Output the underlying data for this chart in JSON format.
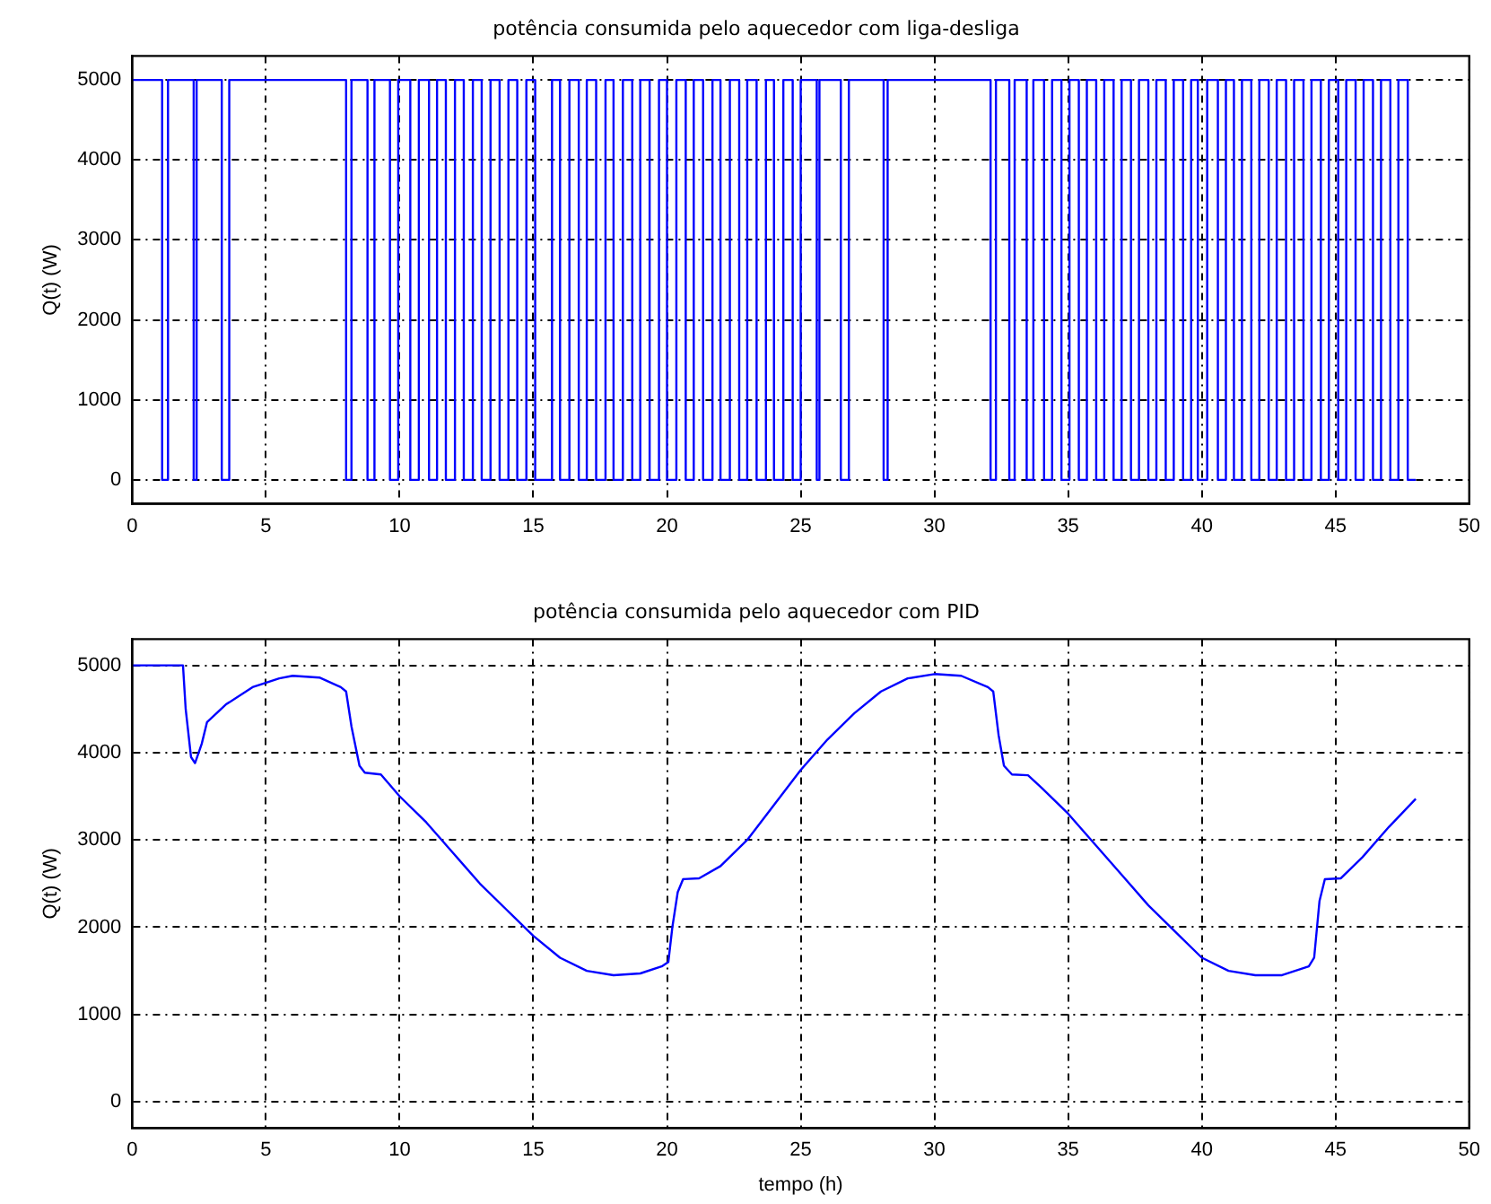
{
  "chart_data": [
    {
      "type": "line",
      "title": "potência consumida pelo aquecedor com liga-desliga",
      "ylabel": "Q(t) (W)",
      "xlim": [
        0,
        50
      ],
      "xticks": [
        0,
        5,
        10,
        15,
        20,
        25,
        30,
        35,
        40,
        45,
        50
      ],
      "ylim": [
        -300,
        5300
      ],
      "yticks": [
        0,
        1000,
        2000,
        3000,
        4000,
        5000
      ],
      "grid": true,
      "series": [
        {
          "color": "#0000ff",
          "x": [
            0,
            1.12,
            1.12,
            1.34,
            1.34,
            2.3,
            2.3,
            2.41,
            2.41,
            3.35,
            3.35,
            3.63,
            3.63,
            8.0,
            8.0,
            8.2,
            8.2,
            8.8,
            8.8,
            9.06,
            9.06,
            9.64,
            9.64,
            9.95,
            9.95,
            10.4,
            10.4,
            10.72,
            10.72,
            11.1,
            11.1,
            11.4,
            11.4,
            11.73,
            11.73,
            12.07,
            12.07,
            12.4,
            12.4,
            12.74,
            12.74,
            13.07,
            13.07,
            13.4,
            13.4,
            13.74,
            13.74,
            14.07,
            14.07,
            14.4,
            14.4,
            14.74,
            14.74,
            15.07,
            15.07,
            15.7,
            15.7,
            16.0,
            16.0,
            16.35,
            16.35,
            16.7,
            16.7,
            17.0,
            17.0,
            17.35,
            17.35,
            17.7,
            17.7,
            18.0,
            18.0,
            18.35,
            18.35,
            18.7,
            18.7,
            19.0,
            19.0,
            19.35,
            19.35,
            19.7,
            19.7,
            20.0,
            20.0,
            20.35,
            20.35,
            20.7,
            20.7,
            21.0,
            21.0,
            21.35,
            21.35,
            21.7,
            21.7,
            22.0,
            22.0,
            22.35,
            22.35,
            22.7,
            22.7,
            23.0,
            23.0,
            23.35,
            23.35,
            23.7,
            23.7,
            24.0,
            24.0,
            24.35,
            24.35,
            24.7,
            24.7,
            25.0,
            25.0,
            25.6,
            25.6,
            25.7,
            25.7,
            26.5,
            26.5,
            26.8,
            26.8,
            28.1,
            28.1,
            28.25,
            28.25,
            32.1,
            32.1,
            32.3,
            32.3,
            32.8,
            32.8,
            33.0,
            33.0,
            33.45,
            33.45,
            33.7,
            33.7,
            34.1,
            34.1,
            34.4,
            34.4,
            34.75,
            34.75,
            35.05,
            35.05,
            35.4,
            35.4,
            35.7,
            35.7,
            36.05,
            36.05,
            36.35,
            36.35,
            36.7,
            36.7,
            37.0,
            37.0,
            37.35,
            37.35,
            37.65,
            37.65,
            38.0,
            38.0,
            38.3,
            38.3,
            38.65,
            38.65,
            38.95,
            38.95,
            39.3,
            39.3,
            39.6,
            39.6,
            39.85,
            39.85,
            40.2,
            40.2,
            40.6,
            40.6,
            40.9,
            40.9,
            41.2,
            41.2,
            41.5,
            41.5,
            41.85,
            41.85,
            42.15,
            42.15,
            42.5,
            42.5,
            42.8,
            42.8,
            43.15,
            43.15,
            43.45,
            43.45,
            43.8,
            43.8,
            44.1,
            44.1,
            44.45,
            44.45,
            44.75,
            44.75,
            45.1,
            45.1,
            45.4,
            45.4,
            45.75,
            45.75,
            46.05,
            46.05,
            46.4,
            46.4,
            46.7,
            46.7,
            47.05,
            47.05,
            47.35,
            47.35,
            47.7,
            47.7,
            48.0
          ],
          "values": [
            5000,
            5000,
            0,
            0,
            5000,
            5000,
            0,
            0,
            5000,
            5000,
            0,
            0,
            5000,
            5000,
            0,
            0,
            5000,
            5000,
            0,
            0,
            5000,
            5000,
            0,
            0,
            5000,
            5000,
            0,
            0,
            5000,
            5000,
            0,
            0,
            5000,
            5000,
            0,
            0,
            5000,
            5000,
            0,
            0,
            5000,
            5000,
            0,
            0,
            5000,
            5000,
            0,
            0,
            5000,
            5000,
            0,
            0,
            5000,
            5000,
            0,
            0,
            5000,
            5000,
            0,
            0,
            5000,
            5000,
            0,
            0,
            5000,
            5000,
            0,
            0,
            5000,
            5000,
            0,
            0,
            5000,
            5000,
            0,
            0,
            5000,
            5000,
            0,
            0,
            5000,
            5000,
            0,
            0,
            5000,
            5000,
            0,
            0,
            5000,
            5000,
            0,
            0,
            5000,
            5000,
            0,
            0,
            5000,
            5000,
            0,
            0,
            5000,
            5000,
            0,
            0,
            5000,
            5000,
            0,
            0,
            5000,
            5000,
            0,
            0,
            5000,
            5000,
            0,
            0,
            5000,
            5000,
            0,
            0,
            5000,
            5000,
            0,
            0,
            5000,
            5000,
            0,
            0,
            5000,
            5000,
            0,
            0,
            5000,
            5000,
            0,
            0,
            5000,
            5000,
            0,
            0,
            5000,
            5000,
            0,
            0,
            5000,
            5000,
            0,
            0,
            5000,
            5000,
            0,
            0,
            5000,
            5000,
            0,
            0,
            5000,
            5000,
            0,
            0,
            5000,
            5000,
            0,
            0,
            5000,
            5000,
            0,
            0,
            5000,
            5000,
            0,
            0,
            5000,
            5000,
            0,
            0,
            5000,
            5000,
            0,
            0,
            5000,
            5000,
            0,
            0,
            5000,
            5000,
            0,
            0,
            5000,
            5000,
            0,
            0,
            5000,
            5000,
            0,
            0,
            5000,
            5000,
            0,
            0,
            5000,
            5000,
            0,
            0,
            5000,
            5000,
            0,
            0,
            5000,
            5000,
            0,
            0,
            5000,
            5000,
            0,
            0,
            5000,
            5000,
            0,
            0,
            5000,
            5000,
            0,
            0
          ]
        }
      ]
    },
    {
      "type": "line",
      "title": "potência consumida pelo aquecedor com PID",
      "xlabel": "tempo (h)",
      "ylabel": "Q(t) (W)",
      "xlim": [
        0,
        50
      ],
      "xticks": [
        0,
        5,
        10,
        15,
        20,
        25,
        30,
        35,
        40,
        45,
        50
      ],
      "ylim": [
        -300,
        5300
      ],
      "yticks": [
        0,
        1000,
        2000,
        3000,
        4000,
        5000
      ],
      "grid": true,
      "series": [
        {
          "color": "#0000ff",
          "x": [
            0,
            1.9,
            2.0,
            2.2,
            2.35,
            2.6,
            2.8,
            3.5,
            4.5,
            5.5,
            6,
            7,
            7.8,
            8.0,
            8.2,
            8.5,
            8.7,
            9.3,
            10,
            11,
            12,
            13,
            14,
            15,
            16,
            17,
            18,
            19,
            19.8,
            20.05,
            20.2,
            20.4,
            20.6,
            21.2,
            22,
            23,
            24,
            25,
            26,
            27,
            28,
            29,
            30,
            31,
            32,
            32.2,
            32.4,
            32.6,
            32.9,
            33.5,
            34,
            35,
            36,
            37,
            38,
            39,
            40,
            41,
            42,
            43,
            44,
            44.2,
            44.4,
            44.6,
            45.2,
            46,
            47,
            48
          ],
          "values": [
            5000,
            5000,
            4500,
            3950,
            3880,
            4100,
            4350,
            4550,
            4750,
            4850,
            4880,
            4860,
            4750,
            4700,
            4300,
            3850,
            3770,
            3750,
            3500,
            3200,
            2850,
            2500,
            2200,
            1900,
            1650,
            1500,
            1450,
            1470,
            1550,
            1600,
            2000,
            2400,
            2550,
            2560,
            2700,
            3000,
            3400,
            3800,
            4150,
            4450,
            4700,
            4850,
            4900,
            4880,
            4750,
            4700,
            4200,
            3850,
            3750,
            3740,
            3600,
            3300,
            2950,
            2600,
            2250,
            1950,
            1650,
            1500,
            1450,
            1450,
            1550,
            1650,
            2300,
            2550,
            2560,
            2800,
            3150,
            3470
          ]
        }
      ]
    }
  ]
}
